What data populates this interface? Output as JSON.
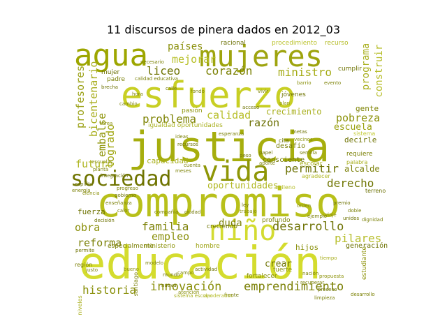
{
  "title": "11 discursos de pinera dados en 2012_03",
  "words": [
    {
      "text": "esfuerzo",
      "color": "#c8cf24"
    },
    {
      "text": "justicia",
      "color": "#a6ae0d"
    },
    {
      "text": "compromiso",
      "color": "#b8c01a"
    },
    {
      "text": "educación",
      "color": "#d4dc2e"
    },
    {
      "text": "mujeres",
      "color": "#9ea40e"
    },
    {
      "text": "agua",
      "color": "#9da600"
    },
    {
      "text": "vida",
      "color": "#8e9606"
    },
    {
      "text": "sociedad",
      "color": "#6f7400"
    },
    {
      "text": "niño",
      "color": "#d3db31"
    },
    {
      "text": "innovación",
      "color": "#8a8f0a"
    },
    {
      "text": "emprendimiento",
      "color": "#7b8006"
    },
    {
      "text": "desarrollo",
      "color": "#6f7305"
    },
    {
      "text": "familia",
      "color": "#7d8208"
    },
    {
      "text": "historia",
      "color": "#8a900b"
    },
    {
      "text": "permitir",
      "color": "#6c7203"
    },
    {
      "text": "problema",
      "color": "#7f8405"
    },
    {
      "text": "corazón",
      "color": "#7a8003"
    },
    {
      "text": "ministro",
      "color": "#a4ab15"
    },
    {
      "text": "liceo",
      "color": "#6e7300"
    },
    {
      "text": "mejorar",
      "color": "#b7bf27"
    },
    {
      "text": "países",
      "color": "#8a8f0a"
    },
    {
      "text": "programa",
      "color": "#a9b020"
    },
    {
      "text": "construir",
      "color": "#b7be2b"
    },
    {
      "text": "profesores",
      "color": "#9aa013"
    },
    {
      "text": "bicentenario",
      "color": "#a7ad1b"
    },
    {
      "text": "embalse",
      "color": "#8e9408"
    },
    {
      "text": "logrado",
      "color": "#a0a60f"
    },
    {
      "text": "futuro",
      "color": "#aeb521"
    },
    {
      "text": "capacidad",
      "color": "#a9b01d"
    },
    {
      "text": "calidad",
      "color": "#b8bf2b"
    },
    {
      "text": "razón",
      "color": "#6b7004"
    },
    {
      "text": "crecimiento",
      "color": "#a8af1c"
    },
    {
      "text": "pobreza",
      "color": "#8c9209"
    },
    {
      "text": "escuela",
      "color": "#9aa10f"
    },
    {
      "text": "gente",
      "color": "#7f8506"
    },
    {
      "text": "derecho",
      "color": "#707604"
    },
    {
      "text": "decirle",
      "color": "#6f7403"
    },
    {
      "text": "alcalde",
      "color": "#7b8008"
    },
    {
      "text": "oportunidades",
      "color": "#b2b925"
    },
    {
      "text": "pilares",
      "color": "#b7be2c"
    },
    {
      "text": "reforma",
      "color": "#7b8109"
    },
    {
      "text": "obra",
      "color": "#8a8f0a"
    },
    {
      "text": "empleo",
      "color": "#8a900b"
    },
    {
      "text": "fuerza",
      "color": "#6f7404"
    },
    {
      "text": "duda",
      "color": "#7c8207"
    },
    {
      "text": "crear",
      "color": "#6f7404"
    },
    {
      "text": "hijos",
      "color": "#8a900c"
    },
    {
      "text": "desafío",
      "color": "#7b8006"
    },
    {
      "text": "generación",
      "color": "#6e7303"
    },
    {
      "text": "profundo",
      "color": "#7c8206"
    },
    {
      "text": "ministerio",
      "color": "#8c9209"
    },
    {
      "text": "hombre",
      "color": "#9ba10e"
    },
    {
      "text": "escolar",
      "color": "#a7ae1a"
    },
    {
      "text": "cumplir",
      "color": "#6e7302"
    },
    {
      "text": "racional",
      "color": "#6b7003"
    },
    {
      "text": "procedimiento",
      "color": "#bcc430"
    },
    {
      "text": "recurso",
      "color": "#b4bb26"
    },
    {
      "text": "pasión",
      "color": "#8d9308"
    },
    {
      "text": "consciente",
      "color": "#6f7404"
    },
    {
      "text": "mujer",
      "color": "#6b7003"
    },
    {
      "text": "padre",
      "color": "#7a8005"
    },
    {
      "text": "fuerte",
      "color": "#8a900c"
    },
    {
      "text": "fortalecer",
      "color": "#8a900b"
    },
    {
      "text": "calidad educativa",
      "color": "#7b8006"
    },
    {
      "text": "especialmente",
      "color": "#7c8106"
    },
    {
      "text": "jóvenes",
      "color": "#6f7403"
    },
    {
      "text": "requiere",
      "color": "#7b8006"
    },
    {
      "text": "palabra",
      "color": "#a9b01f"
    },
    {
      "text": "terreno",
      "color": "#6b7003"
    },
    {
      "text": "agradecer",
      "color": "#b2b925"
    },
    {
      "text": "chileno",
      "color": "#b6bd29"
    },
    {
      "text": "sistema",
      "color": "#c4cb35"
    },
    {
      "text": "cita",
      "color": "#6b7003"
    },
    {
      "text": "santiago",
      "color": "#7a8005"
    },
    {
      "text": "región",
      "color": "#7b8006"
    },
    {
      "text": "estudiante",
      "color": "#8d9308"
    },
    {
      "text": "niveles",
      "color": "#a8ae1c"
    },
    {
      "text": "decisión",
      "color": "#6e7303"
    },
    {
      "text": "frente",
      "color": "#6f7404"
    },
    {
      "text": "creciendo",
      "color": "#6e7303"
    },
    {
      "text": "desarrollo",
      "color": "#7c8206"
    },
    {
      "text": "limpieza",
      "color": "#7b8006"
    },
    {
      "text": "necesario",
      "color": "#7c8206"
    },
    {
      "text": "propuesta",
      "color": "#8c9209"
    },
    {
      "text": "aporte",
      "color": "#7b8006"
    },
    {
      "text": "plan",
      "color": "#8d9308"
    },
    {
      "text": "papel",
      "color": "#6f7404"
    },
    {
      "text": "acceso",
      "color": "#6f7404"
    },
    {
      "text": "semilla",
      "color": "#7b8006"
    },
    {
      "text": "fondo",
      "color": "#7a8005"
    },
    {
      "text": "barrio",
      "color": "#8a900c"
    },
    {
      "text": "evento",
      "color": "#7c8206"
    },
    {
      "text": "actividad",
      "color": "#6f7404"
    },
    {
      "text": "tiempo",
      "color": "#a8ae1c"
    },
    {
      "text": "nación",
      "color": "#7b8006"
    },
    {
      "text": "mundo",
      "color": "#6e7303"
    },
    {
      "text": "trabajo",
      "color": "#8a900b"
    },
    {
      "text": "compañía",
      "color": "#7c8206"
    },
    {
      "text": "igualdad oportunidades",
      "color": "#a9b01f"
    },
    {
      "text": "permite",
      "color": "#6f7404"
    },
    {
      "text": "justo",
      "color": "#7b8006"
    },
    {
      "text": "bueno",
      "color": "#8a900b"
    },
    {
      "text": "modelo",
      "color": "#7c8206"
    },
    {
      "text": "recuperar",
      "color": "#7b8006"
    },
    {
      "text": "nueva",
      "color": "#6f7404"
    },
    {
      "text": "proceso",
      "color": "#6e7303"
    },
    {
      "text": "atención",
      "color": "#8a900c"
    },
    {
      "text": "hora",
      "color": "#7c8206"
    },
    {
      "text": "calle",
      "color": "#6f7404"
    },
    {
      "text": "vivir",
      "color": "#7b8006"
    },
    {
      "text": "vecinos",
      "color": "#8a900b"
    },
    {
      "text": "cuenta",
      "color": "#7c8206"
    },
    {
      "text": "peso",
      "color": "#6f7404"
    },
    {
      "text": "ejemplo",
      "color": "#7b8006"
    },
    {
      "text": "viaje",
      "color": "#8a900c"
    },
    {
      "text": "campo",
      "color": "#7c8206"
    },
    {
      "text": "unidos",
      "color": "#6e7303"
    },
    {
      "text": "doble",
      "color": "#7b8006"
    },
    {
      "text": "sistema escolar",
      "color": "#a9b01f"
    },
    {
      "text": "apoderados",
      "color": "#b7be2c"
    },
    {
      "text": "brecha",
      "color": "#6f7404"
    },
    {
      "text": "cambio",
      "color": "#7b8006"
    },
    {
      "text": "tarea",
      "color": "#8a900b"
    },
    {
      "text": "ideas",
      "color": "#7c8206"
    },
    {
      "text": "recursos",
      "color": "#6f7404"
    },
    {
      "text": "esperanza",
      "color": "#7b8006"
    },
    {
      "text": "metas",
      "color": "#6e7303"
    },
    {
      "text": "orden",
      "color": "#8a900c"
    },
    {
      "text": "premio",
      "color": "#6f7404"
    },
    {
      "text": "dignidad",
      "color": "#7b8006"
    },
    {
      "text": "ley",
      "color": "#6e7303"
    },
    {
      "text": "meses",
      "color": "#7c8206"
    },
    {
      "text": "ciudad",
      "color": "#6f7404"
    },
    {
      "text": "enseñanza",
      "color": "#7b8006"
    },
    {
      "text": "ciencia",
      "color": "#8a900b"
    },
    {
      "text": "gobierno",
      "color": "#6e7303"
    },
    {
      "text": "progreso",
      "color": "#7c8206"
    },
    {
      "text": "energía",
      "color": "#7b8006"
    },
    {
      "text": "espíritu",
      "color": "#6f7404"
    },
    {
      "text": "escuelas",
      "color": "#8a900c"
    },
    {
      "text": "planta",
      "color": "#7c8206"
    },
    {
      "text": "integración",
      "color": "#6e7303"
    },
    {
      "text": "calor",
      "color": "#7b8006"
    }
  ]
}
